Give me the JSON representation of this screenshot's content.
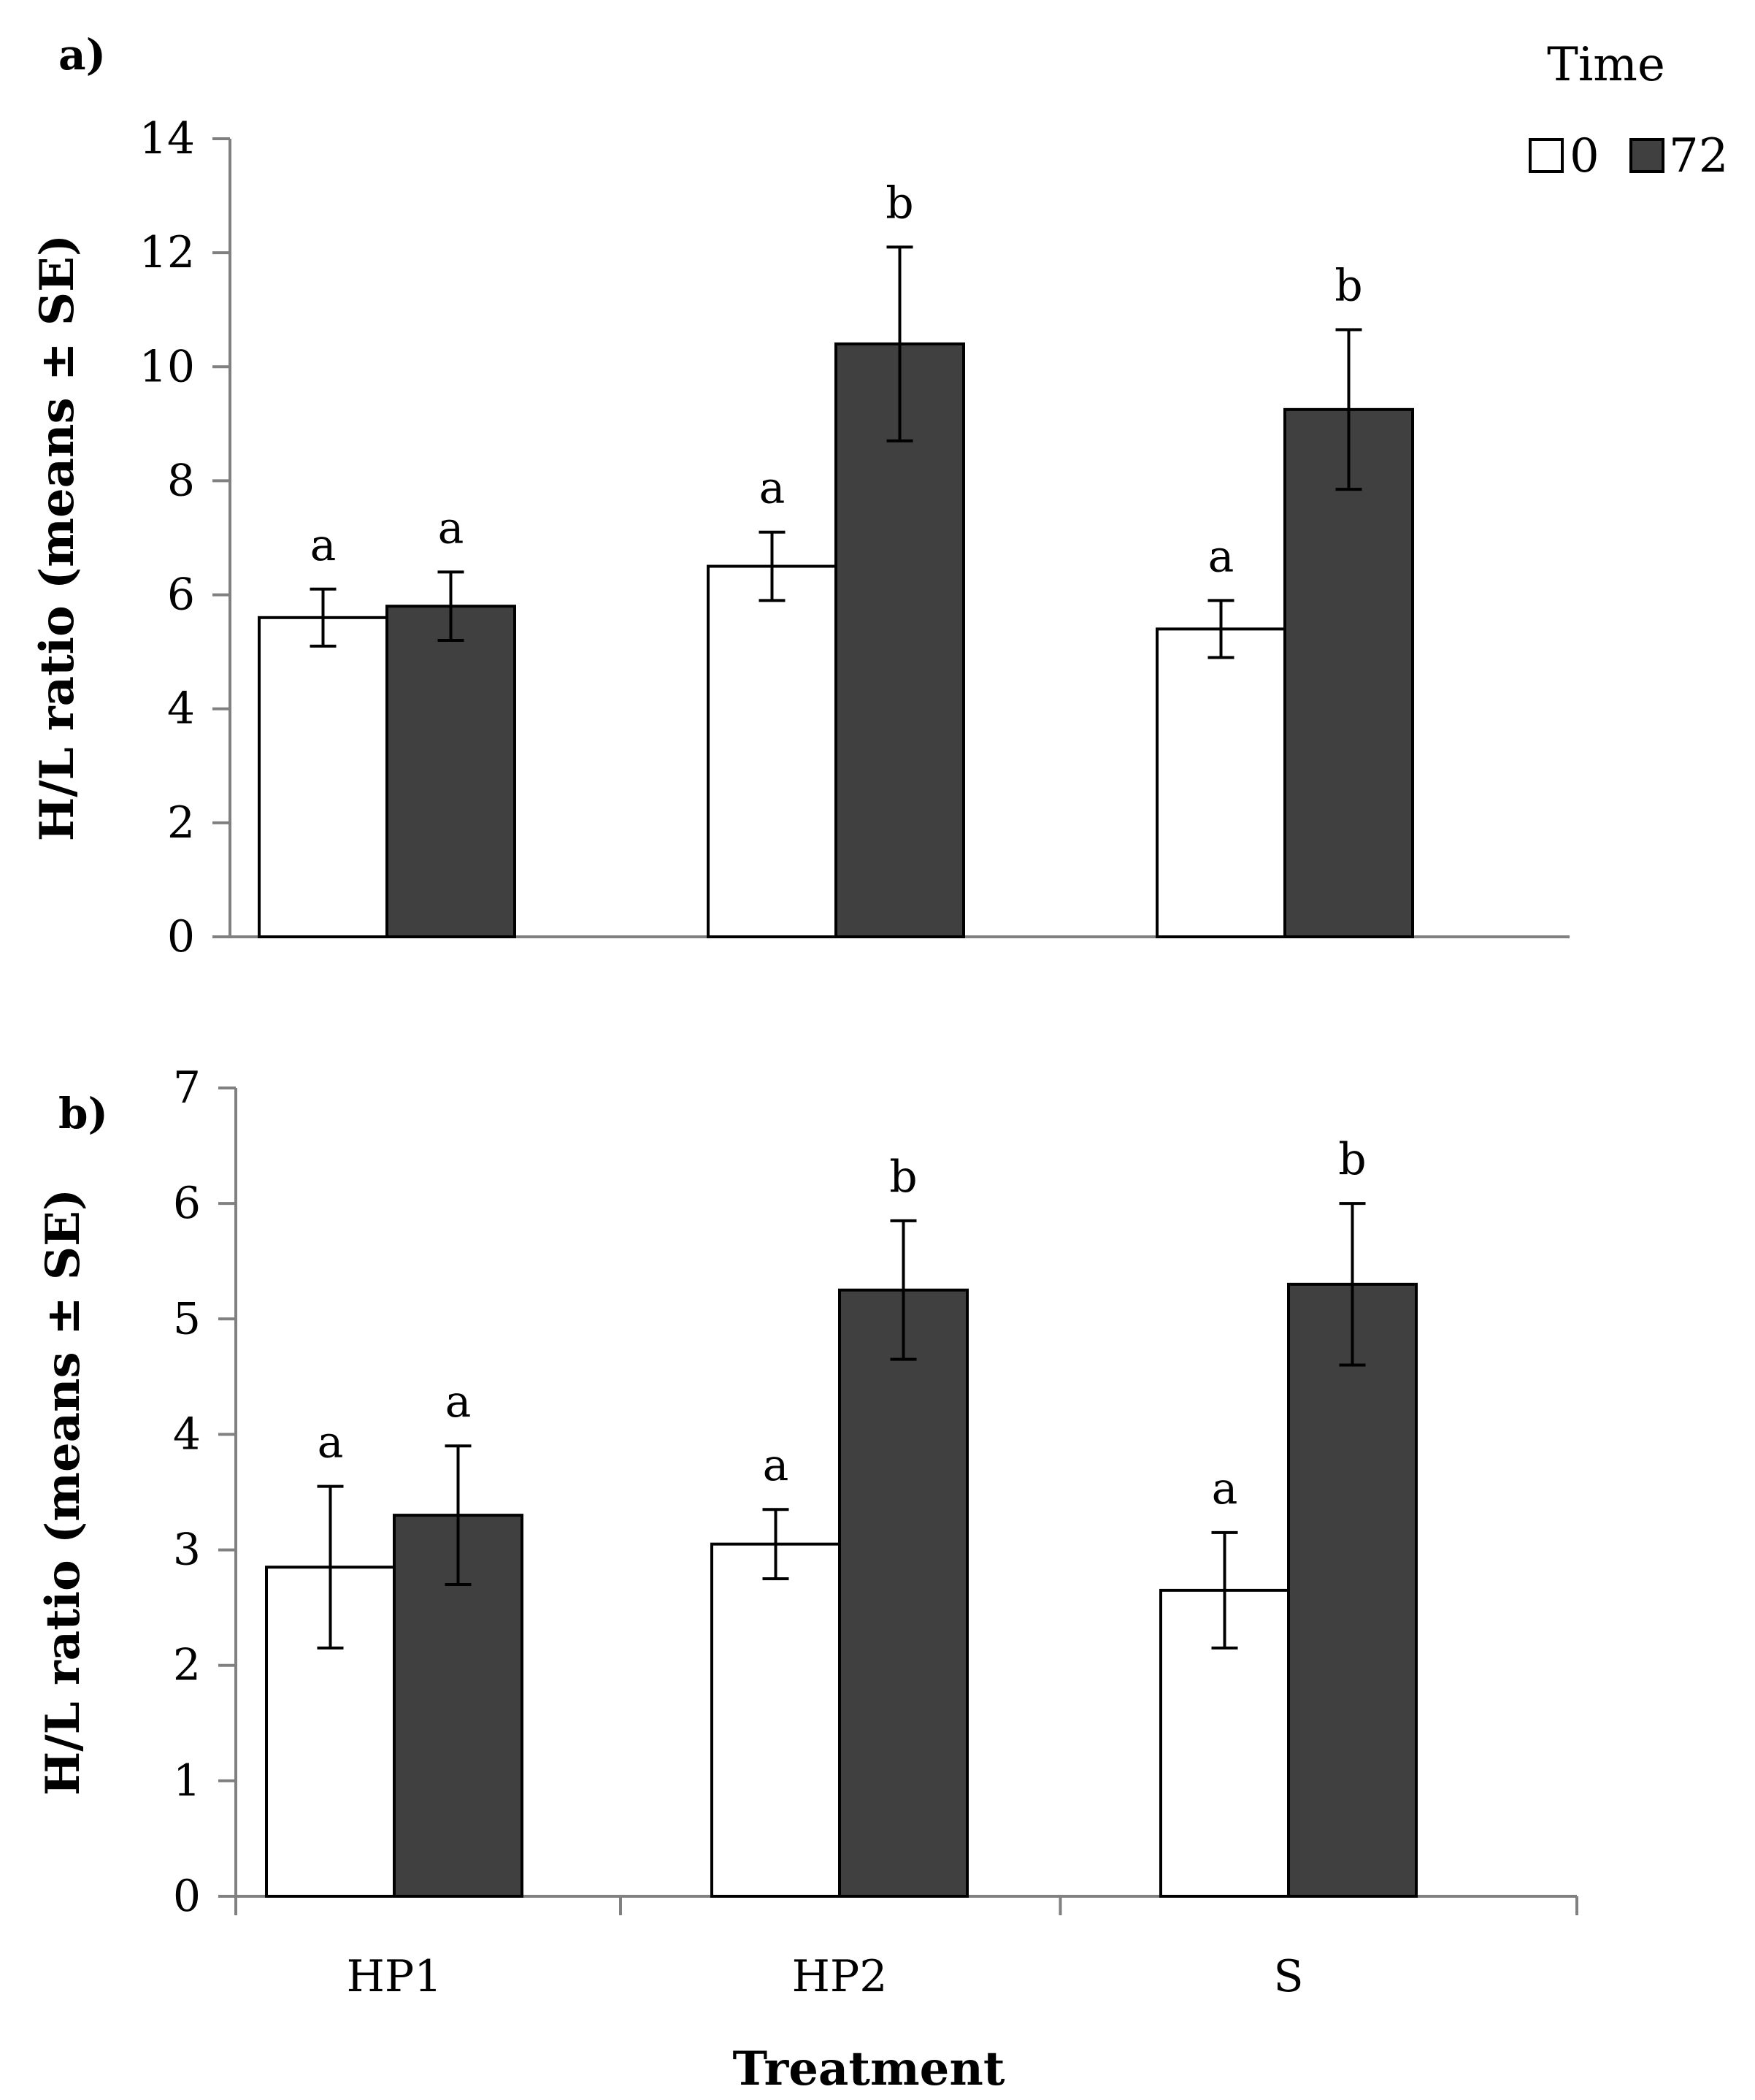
{
  "legend": {
    "title": "Time",
    "items": [
      {
        "label": "0",
        "color": "#ffffff"
      },
      {
        "label": "72",
        "color": "#404040"
      }
    ]
  },
  "x_axis_title": "Treatment",
  "chart_data": [
    {
      "type": "bar",
      "panel_label": "a)",
      "categories": [
        "HP1",
        "HP2",
        "S"
      ],
      "series": [
        {
          "name": "0",
          "color": "#ffffff",
          "values": [
            5.6,
            6.5,
            5.4
          ],
          "se": [
            0.5,
            0.6,
            0.5
          ],
          "letters": [
            "a",
            "a",
            "a"
          ]
        },
        {
          "name": "72",
          "color": "#404040",
          "values": [
            5.8,
            10.4,
            9.25
          ],
          "se": [
            0.6,
            1.7,
            1.4
          ],
          "letters": [
            "a",
            "b",
            "b"
          ]
        }
      ],
      "ylabel": "H/L ratio (means ± SE)",
      "ylim": [
        0,
        14
      ],
      "yticks": [
        0,
        2,
        4,
        6,
        8,
        10,
        12,
        14
      ],
      "grid": false,
      "legend_placement": "top-right"
    },
    {
      "type": "bar",
      "panel_label": "b)",
      "categories": [
        "HP1",
        "HP2",
        "S"
      ],
      "series": [
        {
          "name": "0",
          "color": "#ffffff",
          "values": [
            2.85,
            3.05,
            2.65
          ],
          "se": [
            0.7,
            0.3,
            0.5
          ],
          "letters": [
            "a",
            "a",
            "a"
          ]
        },
        {
          "name": "72",
          "color": "#404040",
          "values": [
            3.3,
            5.25,
            5.3
          ],
          "se": [
            0.6,
            0.6,
            0.7
          ],
          "letters": [
            "a",
            "b",
            "b"
          ]
        }
      ],
      "ylabel": "H/L ratio (means ± SE)",
      "xlabel": "Treatment",
      "ylim": [
        0,
        7
      ],
      "yticks": [
        0,
        1,
        2,
        3,
        4,
        5,
        6,
        7
      ],
      "grid": false
    }
  ]
}
